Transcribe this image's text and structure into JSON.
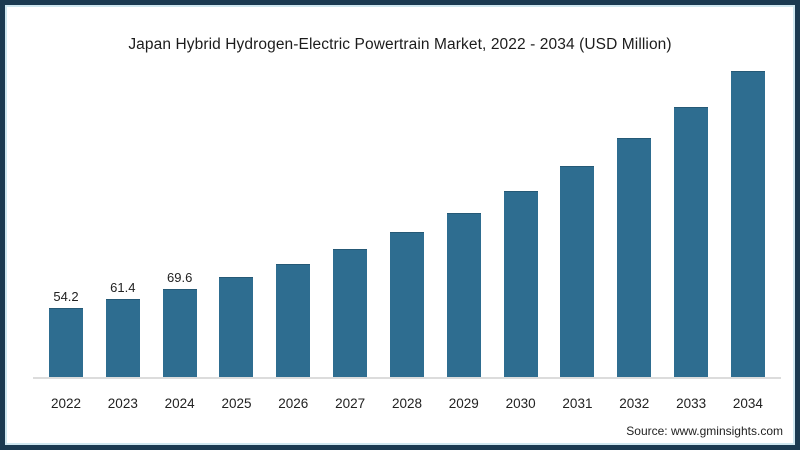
{
  "chart": {
    "title": "Japan Hybrid Hydrogen-Electric Powertrain Market, 2022 - 2034 (USD Million)"
  },
  "footer": {
    "source": "Source: www.gminsights.com"
  },
  "colors": {
    "bar": "#2e6d90",
    "border": "#1b3a51",
    "border_inner": "#cfe7f0",
    "axis_line": "#dcdcdc",
    "text": "#222222"
  },
  "chart_data": {
    "type": "bar",
    "title": "Japan Hybrid Hydrogen-Electric Powertrain Market, 2022 - 2034 (USD Million)",
    "categories": [
      "2022",
      "2023",
      "2024",
      "2025",
      "2026",
      "2027",
      "2028",
      "2029",
      "2030",
      "2031",
      "2032",
      "2033",
      "2034"
    ],
    "values": [
      54.2,
      61.4,
      69.6,
      78.9,
      89.4,
      101.3,
      114.8,
      130.1,
      147.4,
      167.0,
      189.2,
      214.4,
      242.9
    ],
    "data_labels": [
      "54.2",
      "61.4",
      "69.6",
      null,
      null,
      null,
      null,
      null,
      null,
      null,
      null,
      null,
      null
    ],
    "xlabel": "",
    "ylabel": "",
    "ylim": [
      0,
      250
    ],
    "grid": false,
    "legend": false,
    "y_axis_visible": false,
    "bar_color": "#2e6d90",
    "source": "Source: www.gminsights.com"
  }
}
